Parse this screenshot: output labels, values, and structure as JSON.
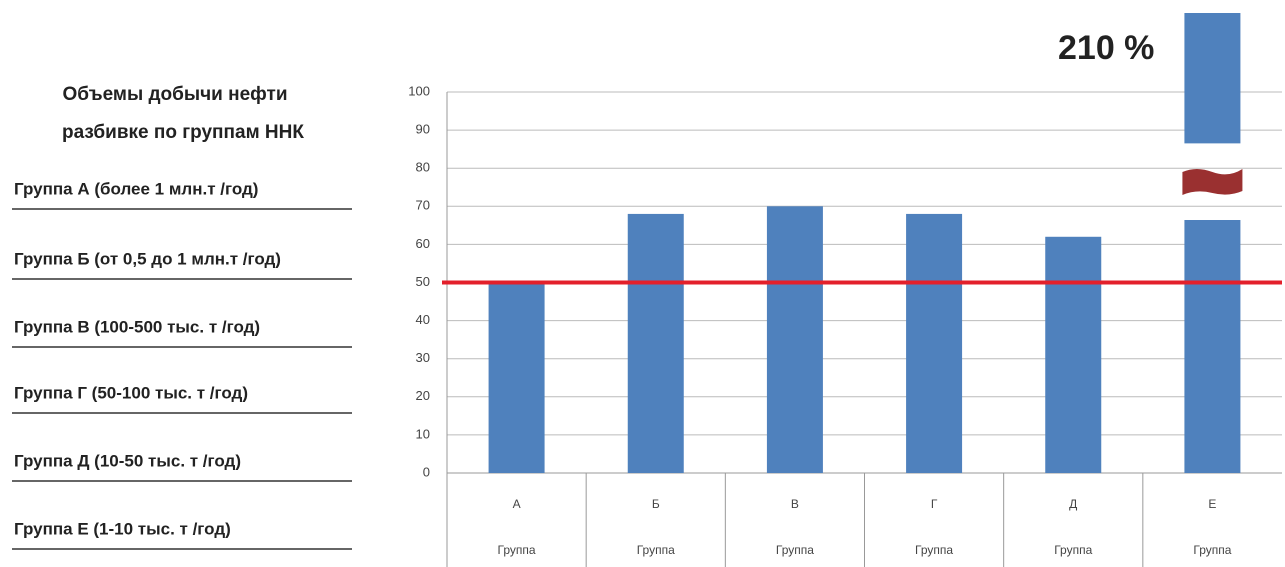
{
  "legend_title": [
    "Объемы добычи нефти",
    "разбивке по группам ННК"
  ],
  "groups": [
    "Группа А (более 1 млн.т /год)",
    "Группа Б (от 0,5 до 1 млн.т /год)",
    "Группа В  (100-500 тыс. т /год)",
    "Группа Г  (50-100 тыс. т /год)",
    "Группа Д    (10-50 тыс. т /год)",
    "Группа Е  (1-10 тыс. т /год)"
  ],
  "chart_data": {
    "type": "bar",
    "categories": [
      "А",
      "Б",
      "В",
      "Г",
      "Д",
      "Е"
    ],
    "category_sublabel": "Группа",
    "values": [
      50,
      68,
      70,
      68,
      62,
      210
    ],
    "value_labels": [
      null,
      null,
      null,
      null,
      null,
      "210 %"
    ],
    "color": "#4f81bd",
    "threshold": 50,
    "threshold_color": "#e3202b",
    "break_color": "#9a3030",
    "ylim": [
      0,
      100
    ],
    "yticks": [
      0,
      10,
      20,
      30,
      40,
      50,
      60,
      70,
      80,
      90,
      100
    ],
    "grid": true
  }
}
